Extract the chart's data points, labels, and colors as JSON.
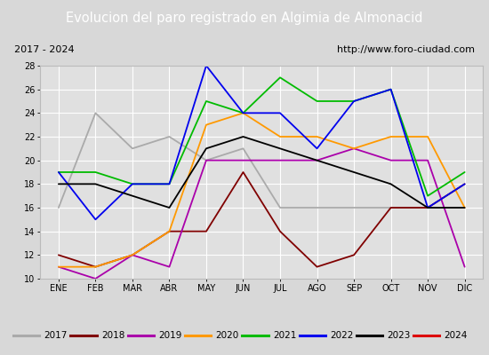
{
  "title": "Evolucion del paro registrado en Algimia de Almonacid",
  "subtitle_left": "2017 - 2024",
  "subtitle_right": "http://www.foro-ciudad.com",
  "months": [
    "ENE",
    "FEB",
    "MAR",
    "ABR",
    "MAY",
    "JUN",
    "JUL",
    "AGO",
    "SEP",
    "OCT",
    "NOV",
    "DIC"
  ],
  "ylim": [
    10,
    28
  ],
  "yticks": [
    10,
    12,
    14,
    16,
    18,
    20,
    22,
    24,
    26,
    28
  ],
  "series": {
    "2017": {
      "color": "#aaaaaa",
      "values": [
        16,
        24,
        21,
        22,
        20,
        21,
        16,
        16,
        16,
        16,
        16,
        16
      ]
    },
    "2018": {
      "color": "#800000",
      "values": [
        12,
        11,
        12,
        14,
        14,
        19,
        14,
        11,
        12,
        16,
        16,
        18
      ]
    },
    "2019": {
      "color": "#aa00aa",
      "values": [
        11,
        10,
        12,
        11,
        20,
        20,
        20,
        20,
        21,
        20,
        20,
        11
      ]
    },
    "2020": {
      "color": "#ff9900",
      "values": [
        11,
        11,
        12,
        14,
        23,
        24,
        22,
        22,
        21,
        22,
        22,
        16
      ]
    },
    "2021": {
      "color": "#00bb00",
      "values": [
        19,
        19,
        18,
        18,
        25,
        24,
        27,
        25,
        25,
        26,
        17,
        19
      ]
    },
    "2022": {
      "color": "#0000ee",
      "values": [
        19,
        15,
        18,
        18,
        28,
        24,
        24,
        21,
        25,
        26,
        16,
        18
      ]
    },
    "2023": {
      "color": "#000000",
      "values": [
        18,
        18,
        17,
        16,
        21,
        22,
        21,
        20,
        19,
        18,
        16,
        16
      ]
    },
    "2024": {
      "color": "#dd0000",
      "values": [
        11,
        null,
        null,
        null,
        null,
        null,
        null,
        null,
        null,
        null,
        null,
        null
      ]
    }
  },
  "title_bg": "#4472c4",
  "title_fg": "#ffffff",
  "fig_bg": "#d8d8d8",
  "plot_bg": "#e0e0e0",
  "border_color": "#3355aa",
  "title_fontsize": 10.5,
  "subtitle_fontsize": 8,
  "tick_fontsize": 7,
  "legend_fontsize": 7.5
}
